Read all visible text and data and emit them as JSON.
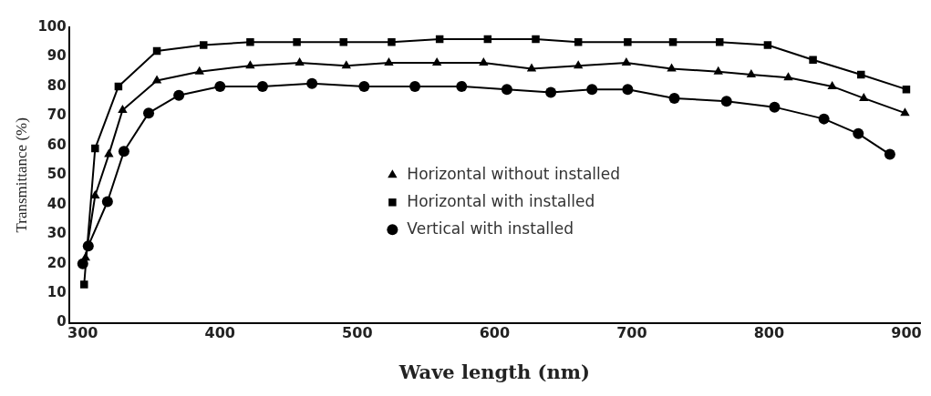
{
  "chart_data": {
    "type": "line",
    "xlabel": "Wave length (nm)",
    "ylabel": "Transmittance (%)",
    "xlim": [
      290,
      910
    ],
    "xticks": [
      300,
      400,
      500,
      600,
      700,
      800,
      900
    ],
    "ylim": [
      0,
      100
    ],
    "yticks": [
      0,
      10,
      20,
      30,
      40,
      50,
      60,
      70,
      80,
      90,
      100
    ],
    "grid": false,
    "legend": "center",
    "series": [
      {
        "name": "Horizontal without installed",
        "color": "#000000",
        "marker": "triangle",
        "x": [
          302,
          309,
          319,
          329,
          354,
          385,
          422,
          458,
          492,
          523,
          558,
          592,
          627,
          661,
          696,
          729,
          763,
          787,
          814,
          846,
          869,
          899
        ],
        "values": [
          22,
          43,
          57,
          72,
          82,
          85,
          87,
          88,
          87,
          88,
          88,
          88,
          86,
          87,
          88,
          86,
          85,
          84,
          83,
          80,
          76,
          71
        ]
      },
      {
        "name": "Horizontal with installed",
        "color": "#000000",
        "marker": "square",
        "x": [
          301,
          309,
          326,
          354,
          388,
          422,
          456,
          490,
          525,
          560,
          595,
          630,
          661,
          697,
          730,
          764,
          799,
          832,
          867,
          900
        ],
        "values": [
          13,
          59,
          80,
          92,
          94,
          95,
          95,
          95,
          95,
          96,
          96,
          96,
          95,
          95,
          95,
          95,
          94,
          89,
          84,
          79
        ]
      },
      {
        "name": "Vertical with installed",
        "color": "#000000",
        "marker": "circle",
        "x": [
          300,
          304,
          318,
          330,
          348,
          370,
          400,
          431,
          467,
          505,
          542,
          576,
          609,
          641,
          671,
          697,
          731,
          769,
          804,
          840,
          865,
          888
        ],
        "values": [
          20,
          26,
          41,
          58,
          71,
          77,
          80,
          80,
          81,
          80,
          80,
          80,
          79,
          78,
          79,
          79,
          76,
          75,
          73,
          69,
          64,
          57
        ]
      }
    ]
  }
}
